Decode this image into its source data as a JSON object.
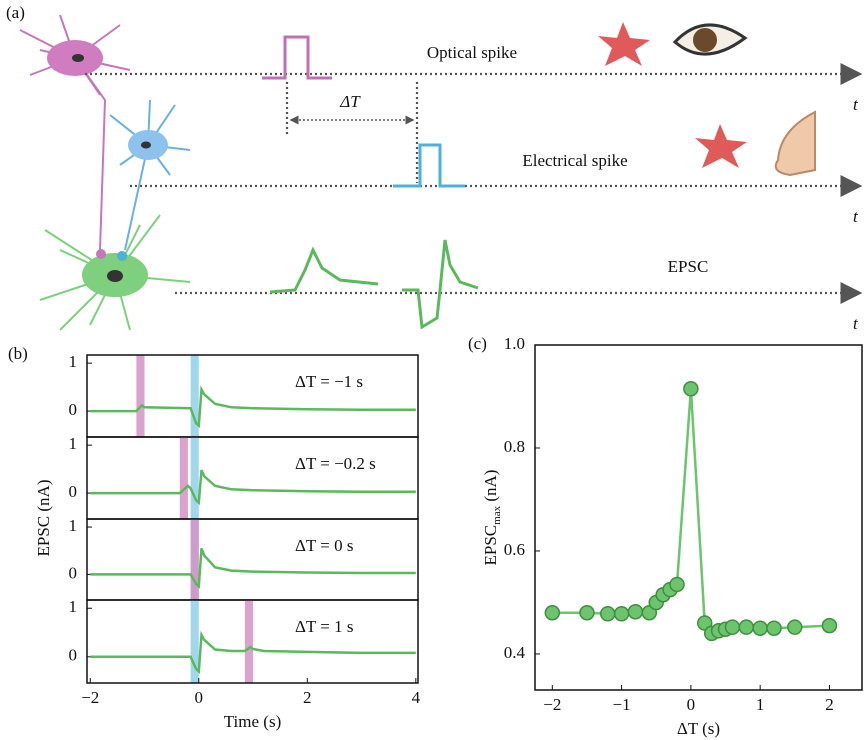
{
  "panel_a": {
    "label": "(a)",
    "optical_label": "Optical spike",
    "delta_t": "ΔT",
    "electrical_label": "Electrical spike",
    "epsc_label": "EPSC",
    "time_axis": [
      "t",
      "t",
      "t"
    ]
  },
  "chart_data": [
    {
      "type": "line",
      "panel_label": "(b)",
      "ylabel": "EPSC (nA)",
      "annotation": "ΔT = −1 s",
      "xlim": [
        -2.06,
        4.04
      ],
      "ylim": [
        -0.54,
        1.17
      ],
      "yticks": [
        0,
        1
      ],
      "spans": [
        {
          "x": [
            -1.15,
            -1.0
          ],
          "color": "#d592c6"
        },
        {
          "x": [
            -0.15,
            0
          ],
          "color": "#8fd0ea"
        }
      ],
      "x": [
        -2,
        -1.15,
        -1.05,
        -1.0,
        -0.15,
        -0.05,
        0,
        0.05,
        0.1,
        0.3,
        0.6,
        1,
        2,
        3,
        4
      ],
      "series": [
        {
          "color": "#5cb85c",
          "values": [
            0,
            0,
            0.12,
            0.08,
            0.06,
            -0.25,
            -0.3,
            0.45,
            0.35,
            0.15,
            0.08,
            0.06,
            0.04,
            0.03,
            0.03
          ]
        }
      ]
    },
    {
      "type": "line",
      "annotation": "ΔT = −0.2 s",
      "xlim": [
        -2.06,
        4.04
      ],
      "ylim": [
        -0.54,
        1.17
      ],
      "yticks": [
        0,
        1
      ],
      "spans": [
        {
          "x": [
            -0.35,
            -0.2
          ],
          "color": "#d592c6"
        },
        {
          "x": [
            -0.15,
            0
          ],
          "color": "#8fd0ea"
        }
      ],
      "x": [
        -2,
        -0.35,
        -0.2,
        -0.15,
        -0.05,
        0,
        0.05,
        0.1,
        0.3,
        0.6,
        1,
        2,
        3,
        4
      ],
      "series": [
        {
          "color": "#5cb85c",
          "values": [
            0,
            0,
            0.15,
            0.1,
            -0.15,
            -0.2,
            0.48,
            0.35,
            0.15,
            0.08,
            0.06,
            0.04,
            0.03,
            0.03
          ]
        }
      ]
    },
    {
      "type": "line",
      "annotation": "ΔT = 0 s",
      "xlim": [
        -2.06,
        4.04
      ],
      "ylim": [
        -0.54,
        1.17
      ],
      "yticks": [
        0,
        1
      ],
      "spans": [
        {
          "x": [
            -0.15,
            0
          ],
          "color": "#8fd0ea"
        },
        {
          "x": [
            -0.15,
            0
          ],
          "color": "#d592c6"
        }
      ],
      "x": [
        -2,
        -0.2,
        -0.15,
        -0.05,
        0,
        0.05,
        0.1,
        0.3,
        0.6,
        1,
        2,
        3,
        4
      ],
      "series": [
        {
          "color": "#5cb85c",
          "values": [
            0,
            0,
            0,
            -0.2,
            -0.25,
            0.55,
            0.4,
            0.15,
            0.08,
            0.06,
            0.04,
            0.03,
            0.03
          ]
        }
      ]
    },
    {
      "type": "line",
      "annotation": "ΔT = 1 s",
      "xlabel": "Time (s)",
      "xlim": [
        -2.06,
        4.04
      ],
      "ylim": [
        -0.54,
        1.17
      ],
      "yticks": [
        0,
        1
      ],
      "xticks": [
        {
          "value": -2,
          "label": "−2"
        },
        0,
        2,
        4
      ],
      "spans": [
        {
          "x": [
            -0.15,
            0
          ],
          "color": "#8fd0ea"
        },
        {
          "x": [
            0.85,
            1.0
          ],
          "color": "#d592c6"
        }
      ],
      "x": [
        -2,
        -0.15,
        -0.05,
        0,
        0.05,
        0.1,
        0.3,
        0.6,
        0.85,
        0.95,
        1.0,
        1.2,
        2,
        3,
        4
      ],
      "series": [
        {
          "color": "#5cb85c",
          "values": [
            0,
            0,
            -0.25,
            -0.3,
            0.45,
            0.35,
            0.15,
            0.12,
            0.12,
            0.2,
            0.16,
            0.12,
            0.1,
            0.08,
            0.08
          ]
        }
      ]
    },
    {
      "type": "scatter",
      "panel_label": "(c)",
      "connected": true,
      "ylabel": "EPSC",
      "ylabel_sub": "max",
      "ylabel_unit": " (nA)",
      "xlabel": "ΔT (s)",
      "xlim": [
        -2.25,
        2.47
      ],
      "ylim": [
        0.33,
        1.0
      ],
      "xticks": [
        {
          "value": -2,
          "label": "−2"
        },
        {
          "value": -1,
          "label": "−1"
        },
        0,
        1,
        2
      ],
      "yticks": [
        0.4,
        0.6,
        0.8,
        {
          "value": 1,
          "label": "1.0"
        }
      ],
      "x": [
        -2,
        -1.5,
        -1.2,
        -1,
        -0.8,
        -0.6,
        -0.5,
        -0.4,
        -0.3,
        -0.2,
        0,
        0.2,
        0.3,
        0.4,
        0.5,
        0.6,
        0.8,
        1,
        1.2,
        1.5,
        2
      ],
      "series": [
        {
          "color": "#6cc46c",
          "values": [
            0.48,
            0.48,
            0.478,
            0.478,
            0.482,
            0.48,
            0.5,
            0.515,
            0.525,
            0.535,
            0.915,
            0.46,
            0.44,
            0.445,
            0.448,
            0.452,
            0.452,
            0.45,
            0.45,
            0.452,
            0.455
          ]
        }
      ]
    }
  ]
}
